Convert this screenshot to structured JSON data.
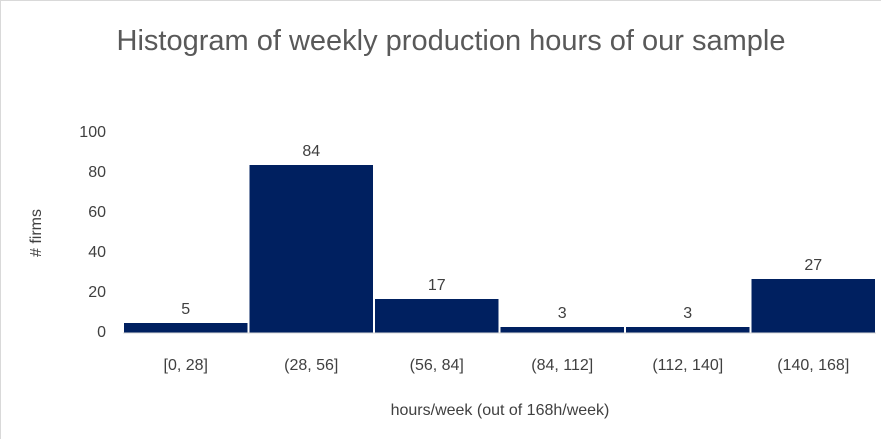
{
  "chart_data": {
    "type": "bar",
    "title": "Histogram of weekly production hours of our sample",
    "x_label": "hours/week (out of 168h/week)",
    "y_label": "# firms",
    "categories": [
      "[0, 28]",
      "(28, 56]",
      "(56, 84]",
      "(84, 112]",
      "(112, 140]",
      "(140, 168]"
    ],
    "values": [
      5,
      84,
      17,
      3,
      3,
      27
    ],
    "color": "#002060",
    "ylim": [
      0,
      100
    ],
    "yticks": [
      0,
      20,
      40,
      60,
      80,
      100
    ],
    "grid": false
  }
}
